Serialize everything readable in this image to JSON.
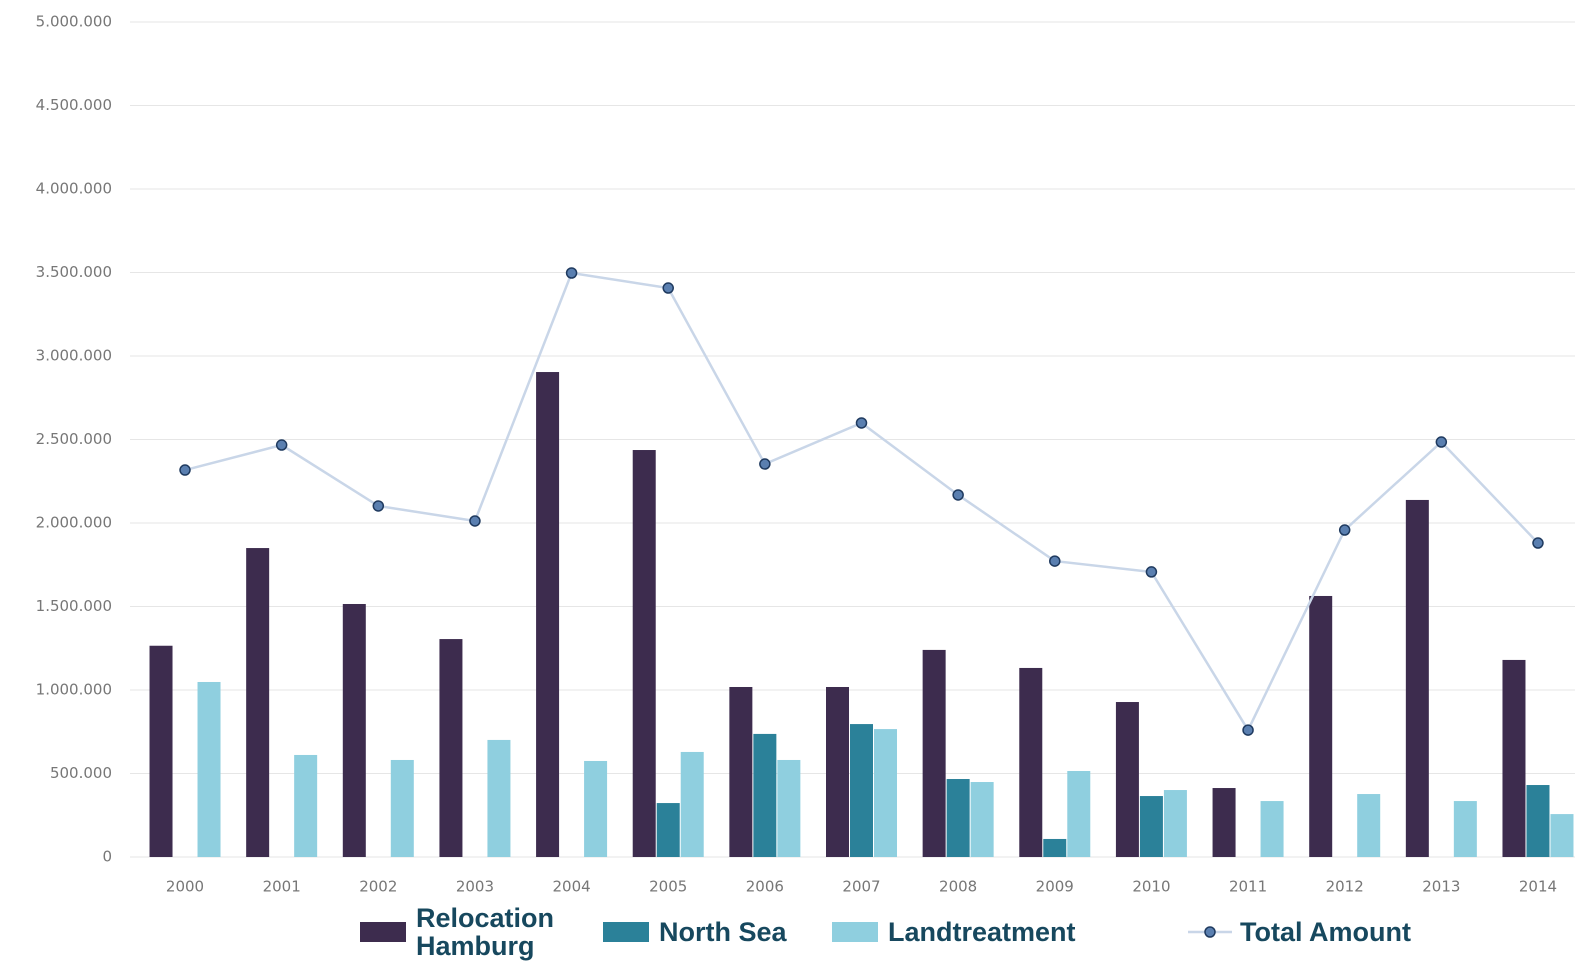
{
  "chart_data": {
    "type": "bar",
    "categories": [
      "2000",
      "2001",
      "2002",
      "2003",
      "2004",
      "2005",
      "2006",
      "2007",
      "2008",
      "2009",
      "2010",
      "2011",
      "2012",
      "2013",
      "2014"
    ],
    "series": [
      {
        "name": "Relocation Hamburg",
        "color": "#3d2c4e",
        "values": [
          1265000,
          1850000,
          1515000,
          1305000,
          2904000,
          2437000,
          1018000,
          1018000,
          1240000,
          1132000,
          928000,
          413000,
          1563000,
          2138000,
          1180000
        ]
      },
      {
        "name": "North Sea",
        "color": "#2b8199",
        "values": [
          0,
          0,
          0,
          0,
          0,
          323000,
          737000,
          796000,
          467000,
          108000,
          365000,
          0,
          0,
          0,
          431000
        ]
      },
      {
        "name": "Landtreatment",
        "color": "#8fcfdf",
        "values": [
          1048000,
          611000,
          581000,
          701000,
          575000,
          629000,
          581000,
          766000,
          449000,
          515000,
          401000,
          335000,
          377000,
          335000,
          257000
        ]
      },
      {
        "name": "Total Amount",
        "type": "line",
        "color": "#c9d6e8",
        "marker_color": "#5a7fb0",
        "values": [
          2317000,
          2467000,
          2102000,
          2012000,
          3497000,
          3407000,
          2353000,
          2599000,
          2168000,
          1772000,
          1707000,
          760000,
          1958000,
          2485000,
          1880000
        ]
      }
    ],
    "ylim": [
      0,
      5000000
    ],
    "yticks": [
      0,
      {
        "value": 500000,
        "label": "500.000"
      },
      {
        "value": 1000000,
        "label": "1.000.000"
      },
      {
        "value": 1500000,
        "label": "1.500.000"
      },
      {
        "value": 2000000,
        "label": "2.000.000"
      },
      {
        "value": 2500000,
        "label": "2.500.000"
      },
      {
        "value": 3000000,
        "label": "3.000.000"
      },
      {
        "value": 3500000,
        "label": "3.500.000"
      },
      {
        "value": 4000000,
        "label": "4.000.000"
      },
      {
        "value": 4500000,
        "label": "4.500.000"
      },
      {
        "value": 5000000,
        "label": "5.000.000"
      }
    ],
    "grid": true,
    "legend": "bottom"
  }
}
